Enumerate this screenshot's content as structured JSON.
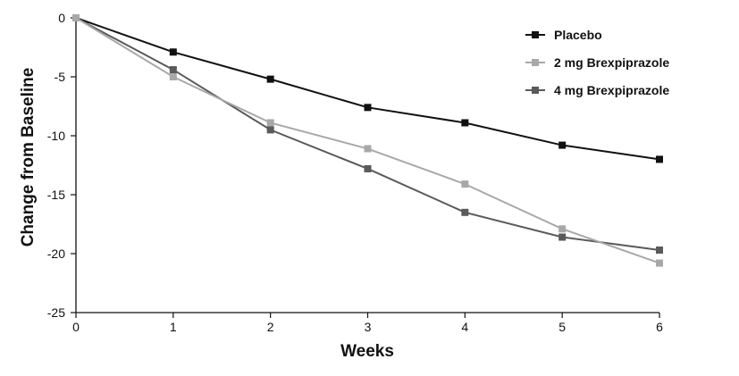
{
  "chart_data": {
    "type": "line",
    "xlabel": "Weeks",
    "ylabel": "Change from Baseline",
    "x": [
      0,
      1,
      2,
      3,
      4,
      5,
      6
    ],
    "xlim": [
      0,
      6
    ],
    "ylim": [
      -25,
      0
    ],
    "x_ticks": [
      "0",
      "1",
      "2",
      "3",
      "4",
      "5",
      "6"
    ],
    "y_ticks": [
      "0",
      "-5",
      "-10",
      "-15",
      "-20",
      "-25"
    ],
    "grid": false,
    "legend_position": "top-right",
    "series": [
      {
        "name": "Placebo",
        "color": "#111111",
        "values": [
          0,
          -2.9,
          -5.2,
          -7.6,
          -8.9,
          -10.8,
          -12.0
        ]
      },
      {
        "name": "2 mg Brexpiprazole",
        "color": "#a8a8a8",
        "values": [
          0,
          -5.0,
          -8.9,
          -11.1,
          -14.1,
          -17.9,
          -20.8
        ]
      },
      {
        "name": "4 mg Brexpiprazole",
        "color": "#5a5a5a",
        "values": [
          0,
          -4.4,
          -9.5,
          -12.8,
          -16.5,
          -18.6,
          -19.7
        ]
      }
    ]
  }
}
